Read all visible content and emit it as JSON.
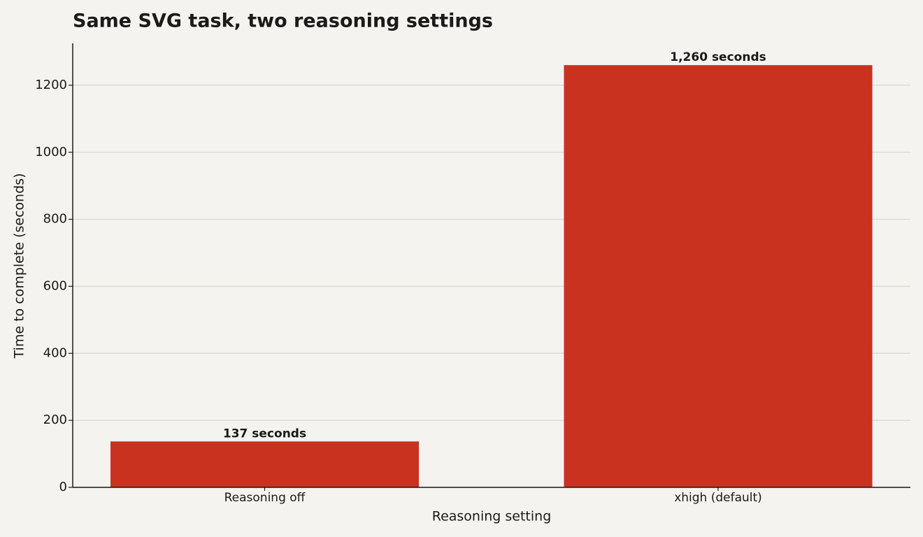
{
  "chart_data": {
    "type": "bar",
    "title": "Same SVG task, two reasoning settings",
    "x_label": "Reasoning setting",
    "y_label": "Time to complete (seconds)",
    "categories": [
      "Reasoning off",
      "xhigh (default)"
    ],
    "values": [
      137,
      1260
    ],
    "value_labels": [
      "137 seconds",
      "1,260 seconds"
    ],
    "color": "#c9321f",
    "ylim": [
      0,
      1325
    ],
    "yticks": [
      0,
      200,
      400,
      600,
      800,
      1000,
      1200
    ],
    "grid": true
  }
}
